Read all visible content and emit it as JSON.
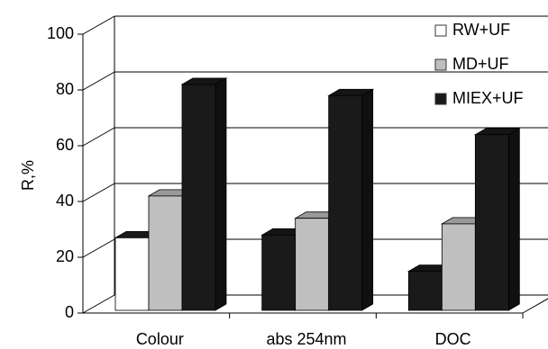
{
  "chart_data": {
    "type": "bar3d",
    "y_label": "R,%",
    "categories": [
      "Colour",
      "abs 254nm",
      "DOC"
    ],
    "series": [
      {
        "name": "RW+UF",
        "color": "#ffffff",
        "point_colors": [
          "#ffffff",
          "#1a1a1a",
          "#1a1a1a"
        ],
        "values": [
          26,
          27,
          14
        ]
      },
      {
        "name": "MD+UF",
        "color": "#bfbfbf",
        "values": [
          41,
          33,
          31
        ]
      },
      {
        "name": "MIEX+UF",
        "color": "#1a1a1a",
        "values": [
          81,
          77,
          63
        ]
      }
    ],
    "ylim": [
      0,
      100
    ],
    "yticks": [
      0,
      20,
      40,
      60,
      80,
      100
    ],
    "grid": true
  }
}
